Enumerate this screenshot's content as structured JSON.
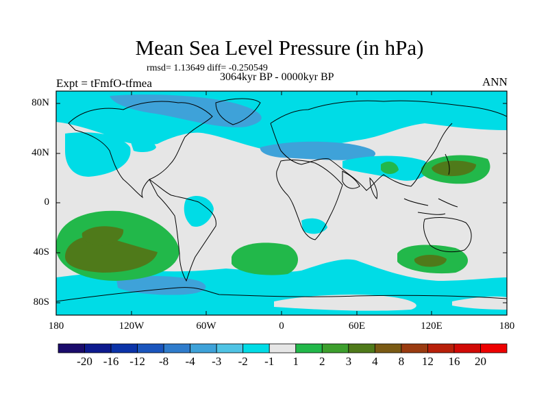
{
  "figure": {
    "title": "Mean Sea Level Pressure (in hPa)",
    "stats": "rmsd= 1.13649 diff= -0.250549",
    "period": "3064kyr BP - 0000kyr BP",
    "experiment": "Expt = tFmfO-tfmea",
    "season": "ANN"
  },
  "axes": {
    "lat_labels": [
      "80N",
      "40N",
      "0",
      "40S",
      "80S"
    ],
    "lon_labels": [
      "180",
      "120W",
      "60W",
      "0",
      "60E",
      "120E",
      "180"
    ]
  },
  "colorbar": {
    "labels": [
      "-20",
      "-16",
      "-12",
      "-8",
      "-4",
      "-3",
      "-2",
      "-1",
      "1",
      "2",
      "3",
      "4",
      "8",
      "12",
      "16",
      "20"
    ],
    "colors": [
      "#1a0b6b",
      "#0d1a8e",
      "#0b33a8",
      "#1a55bd",
      "#2f7ccc",
      "#3ea2d9",
      "#4fc3e4",
      "#00dce6",
      "#e6e6e6",
      "#22b84a",
      "#3d9f2d",
      "#4f7a1a",
      "#7a5a14",
      "#9a3b10",
      "#b8200a",
      "#d10a06",
      "#ee0000"
    ]
  },
  "regions": {
    "background": "#e6e6e6",
    "negative_light": "#00dce6",
    "negative_mid": "#3ea2d9",
    "positive_light": "#22b84a",
    "positive_strong": "#4f7a1a"
  }
}
